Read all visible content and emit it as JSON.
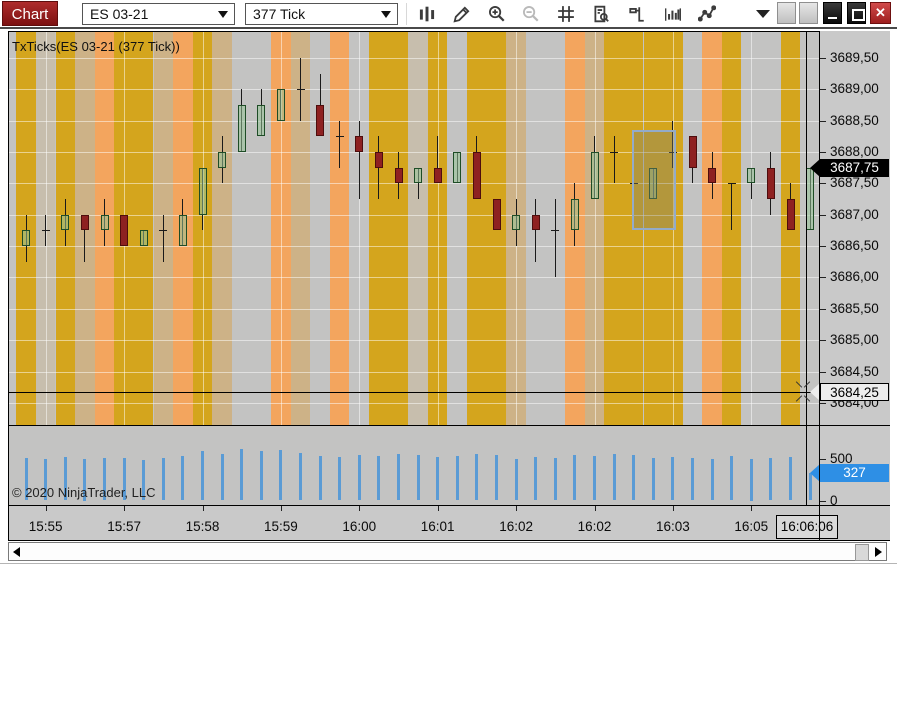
{
  "window": {
    "badge": "Chart",
    "buttons": [
      {
        "name": "minimize-button"
      },
      {
        "name": "maximize-button"
      },
      {
        "name": "close-button"
      }
    ]
  },
  "toolbar": {
    "instrument": "ES 03-21",
    "interval": "377 Tick",
    "icons": [
      {
        "name": "chart-style-icon",
        "enabled": true
      },
      {
        "name": "drawing-tools-icon",
        "enabled": true
      },
      {
        "name": "zoom-in-icon",
        "enabled": true
      },
      {
        "name": "zoom-out-icon",
        "enabled": false
      },
      {
        "name": "crosshair-icon",
        "enabled": true
      },
      {
        "name": "data-box-icon",
        "enabled": true
      },
      {
        "name": "chart-trader-icon",
        "enabled": true
      },
      {
        "name": "volume-histogram-icon",
        "enabled": true
      },
      {
        "name": "indicators-icon",
        "enabled": true
      }
    ]
  },
  "chart": {
    "overlay_title": "TxTicks(ES 03-21 (377 Tick))",
    "copyright": "© 2020 NinjaTrader, LLC"
  },
  "colors": {
    "bands": {
      "gold": "#D4A51D",
      "tan": "#CDB287",
      "graytan": "#C7BEAD",
      "orange": "#F3A55E",
      "gray": "#C3C3C2"
    },
    "plot_bg": "#C3C3C2",
    "axis_bg": "#C9C9C9",
    "grid": "rgba(255,255,255,0.5)",
    "wick": "#1a1a1a",
    "up_fill": "rgba(150,196,152,0.55)",
    "up_border": "#1E4D26",
    "down_fill": "#8E2121",
    "down_border": "#4E0D0D",
    "volume_bar": "#5A9BD5",
    "selection_border": "#93ABC9",
    "selection_fill": "rgba(125,130,110,0.38)",
    "crosshair": "#000000",
    "last_price_bg": "#000000",
    "last_price_fg": "#FFFFFF",
    "cross_label_bg": "#EDEDED",
    "cross_label_fg": "#000000",
    "vol_label_bg": "#2E8FE5",
    "vol_label_fg": "#FFFFFF",
    "time_box_bg": "#D9D9D9"
  },
  "chart_data": {
    "type": "candlestick",
    "title": "TxTicks(ES 03-21 (377 Tick))",
    "ylim": [
      3683.9,
      3689.95
    ],
    "candle_format": "[open, high, low, close]",
    "price_axis": {
      "ticks": [
        {
          "label": "3689,50",
          "value": 3689.5
        },
        {
          "label": "3689,00",
          "value": 3689.0
        },
        {
          "label": "3688,50",
          "value": 3688.5
        },
        {
          "label": "3688,00",
          "value": 3688.0
        },
        {
          "label": "3687,50",
          "value": 3687.5
        },
        {
          "label": "3687,00",
          "value": 3687.0
        },
        {
          "label": "3686,50",
          "value": 3686.5
        },
        {
          "label": "3686,00",
          "value": 3686.0
        },
        {
          "label": "3685,50",
          "value": 3685.5
        },
        {
          "label": "3685,00",
          "value": 3685.0
        },
        {
          "label": "3684,50",
          "value": 3684.5
        },
        {
          "label": "3684,00",
          "value": 3684.0
        }
      ],
      "last_price": {
        "label": "3687,75",
        "value": 3687.75
      }
    },
    "volume_axis": {
      "ticks": [
        {
          "label": "500",
          "value": 500
        },
        {
          "label": "0",
          "value": 0
        }
      ],
      "current": {
        "label": "327",
        "value": 327
      }
    },
    "time_axis": {
      "ticks": [
        {
          "candle_index": 1,
          "label": "15:55"
        },
        {
          "candle_index": 5,
          "label": "15:57"
        },
        {
          "candle_index": 9,
          "label": "15:58"
        },
        {
          "candle_index": 13,
          "label": "15:59"
        },
        {
          "candle_index": 17,
          "label": "16:00"
        },
        {
          "candle_index": 21,
          "label": "16:01"
        },
        {
          "candle_index": 25,
          "label": "16:02"
        },
        {
          "candle_index": 29,
          "label": "16:02"
        },
        {
          "candle_index": 33,
          "label": "16:03"
        },
        {
          "candle_index": 37,
          "label": "16:05"
        }
      ]
    },
    "crosshair": {
      "price_label": "3684,25",
      "price": 3684.25,
      "time_label": "16:06:06"
    },
    "candles": [
      [
        3686.5,
        3687.0,
        3686.25,
        3686.75
      ],
      [
        3686.75,
        3687.0,
        3686.5,
        3686.75
      ],
      [
        3686.75,
        3687.25,
        3686.5,
        3687.0
      ],
      [
        3687.0,
        3687.0,
        3686.25,
        3686.75
      ],
      [
        3686.75,
        3687.25,
        3686.5,
        3687.0
      ],
      [
        3687.0,
        3687.0,
        3686.5,
        3686.5
      ],
      [
        3686.5,
        3686.75,
        3686.5,
        3686.75
      ],
      [
        3686.75,
        3687.0,
        3686.25,
        3686.75
      ],
      [
        3686.5,
        3687.25,
        3686.5,
        3687.0
      ],
      [
        3687.0,
        3687.75,
        3686.75,
        3687.75
      ],
      [
        3687.75,
        3688.25,
        3687.5,
        3688.0
      ],
      [
        3688.0,
        3689.0,
        3688.0,
        3688.75
      ],
      [
        3688.25,
        3689.0,
        3688.25,
        3688.75
      ],
      [
        3688.5,
        3689.0,
        3688.5,
        3689.0
      ],
      [
        3689.0,
        3689.5,
        3688.5,
        3689.0
      ],
      [
        3688.75,
        3689.25,
        3688.25,
        3688.25
      ],
      [
        3688.25,
        3688.5,
        3687.75,
        3688.25
      ],
      [
        3688.25,
        3688.5,
        3687.25,
        3688.0
      ],
      [
        3688.0,
        3688.25,
        3687.25,
        3687.75
      ],
      [
        3687.75,
        3688.0,
        3687.25,
        3687.5
      ],
      [
        3687.5,
        3687.75,
        3687.25,
        3687.75
      ],
      [
        3687.75,
        3688.25,
        3687.5,
        3687.5
      ],
      [
        3687.5,
        3688.0,
        3687.5,
        3688.0
      ],
      [
        3688.0,
        3688.25,
        3687.25,
        3687.25
      ],
      [
        3687.25,
        3687.25,
        3686.75,
        3686.75
      ],
      [
        3686.75,
        3687.25,
        3686.5,
        3687.0
      ],
      [
        3687.0,
        3687.25,
        3686.25,
        3686.75
      ],
      [
        3686.75,
        3687.25,
        3686.0,
        3686.75
      ],
      [
        3686.75,
        3687.5,
        3686.5,
        3687.25
      ],
      [
        3687.25,
        3688.25,
        3687.25,
        3688.0
      ],
      [
        3688.0,
        3688.25,
        3687.5,
        3688.0
      ],
      [
        3687.5,
        3688.0,
        3687.25,
        3687.5
      ],
      [
        3687.25,
        3687.75,
        3687.25,
        3687.75
      ],
      [
        3688.0,
        3688.5,
        3687.75,
        3688.0
      ],
      [
        3688.25,
        3688.25,
        3687.5,
        3687.75
      ],
      [
        3687.75,
        3688.0,
        3687.25,
        3687.5
      ],
      [
        3687.5,
        3687.5,
        3686.75,
        3687.5
      ],
      [
        3687.5,
        3687.75,
        3687.25,
        3687.75
      ],
      [
        3687.75,
        3688.0,
        3687.0,
        3687.25
      ],
      [
        3687.25,
        3687.5,
        3686.75,
        3686.75
      ],
      [
        3686.75,
        3687.75,
        3686.75,
        3687.75
      ]
    ],
    "volumes": [
      505,
      495,
      515,
      500,
      510,
      505,
      480,
      510,
      525,
      595,
      555,
      615,
      585,
      605,
      560,
      535,
      520,
      540,
      530,
      555,
      540,
      515,
      530,
      550,
      540,
      495,
      515,
      505,
      545,
      530,
      555,
      545,
      505,
      515,
      505,
      490,
      525,
      500,
      510,
      515,
      327
    ],
    "bands": [
      "gold",
      "graytan",
      "gold",
      "tan",
      "orange",
      "gold",
      "gold",
      "tan",
      "orange",
      "gold",
      "tan",
      "gray",
      "gray",
      "orange",
      "tan",
      "gray",
      "orange",
      "gray",
      "gold",
      "gold",
      "graytan",
      "gold",
      "gray",
      "gold",
      "gold",
      "tan",
      "gray",
      "gray",
      "orange",
      "tan",
      "gold",
      "gold",
      "gold",
      "gold",
      "gray",
      "orange",
      "gold",
      "gray",
      "gray",
      "gold",
      "gray"
    ],
    "selection": {
      "candle_index": 32,
      "price_top": 3688.35,
      "price_bottom": 3686.75
    }
  }
}
